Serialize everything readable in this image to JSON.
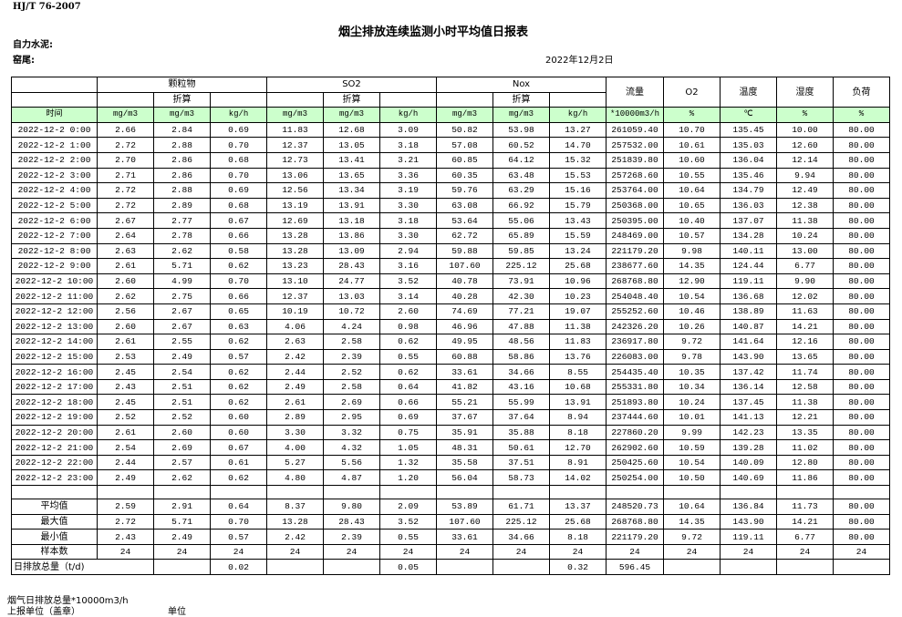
{
  "header": {
    "standard": "HJ/T  76-2007",
    "title": "烟尘排放连续监测小时平均值日报表",
    "company": "自力水泥:",
    "kiln": "窑尾:",
    "date": "2022年12月2日"
  },
  "table": {
    "groups": {
      "particulate": "颗粒物",
      "so2": "SO2",
      "nox": "Nox",
      "flow": "流量",
      "o2": "O2",
      "temp": "温度",
      "humidity": "湿度",
      "load": "负荷"
    },
    "converted": "折算",
    "units": [
      "时间",
      "mg/m3",
      "mg/m3",
      "kg/h",
      "mg/m3",
      "mg/m3",
      "kg/h",
      "mg/m3",
      "mg/m3",
      "kg/h",
      "*10000m3/h",
      "%",
      "℃",
      "%",
      "%"
    ],
    "rows": [
      [
        "2022-12-2 0:00",
        "2.66",
        "2.84",
        "0.69",
        "11.83",
        "12.68",
        "3.09",
        "50.82",
        "53.98",
        "13.27",
        "261059.40",
        "10.70",
        "135.45",
        "10.00",
        "80.00"
      ],
      [
        "2022-12-2 1:00",
        "2.72",
        "2.88",
        "0.70",
        "12.37",
        "13.05",
        "3.18",
        "57.08",
        "60.52",
        "14.70",
        "257532.00",
        "10.61",
        "135.03",
        "12.60",
        "80.00"
      ],
      [
        "2022-12-2 2:00",
        "2.70",
        "2.86",
        "0.68",
        "12.73",
        "13.41",
        "3.21",
        "60.85",
        "64.12",
        "15.32",
        "251839.80",
        "10.60",
        "136.04",
        "12.14",
        "80.00"
      ],
      [
        "2022-12-2 3:00",
        "2.71",
        "2.86",
        "0.70",
        "13.06",
        "13.65",
        "3.36",
        "60.35",
        "63.48",
        "15.53",
        "257268.60",
        "10.55",
        "135.46",
        "9.94",
        "80.00"
      ],
      [
        "2022-12-2 4:00",
        "2.72",
        "2.88",
        "0.69",
        "12.56",
        "13.34",
        "3.19",
        "59.76",
        "63.29",
        "15.16",
        "253764.00",
        "10.64",
        "134.79",
        "12.49",
        "80.00"
      ],
      [
        "2022-12-2 5:00",
        "2.72",
        "2.89",
        "0.68",
        "13.19",
        "13.91",
        "3.30",
        "63.08",
        "66.92",
        "15.79",
        "250368.00",
        "10.65",
        "136.03",
        "12.38",
        "80.00"
      ],
      [
        "2022-12-2 6:00",
        "2.67",
        "2.77",
        "0.67",
        "12.69",
        "13.18",
        "3.18",
        "53.64",
        "55.06",
        "13.43",
        "250395.00",
        "10.40",
        "137.07",
        "11.38",
        "80.00"
      ],
      [
        "2022-12-2 7:00",
        "2.64",
        "2.78",
        "0.66",
        "13.28",
        "13.86",
        "3.30",
        "62.72",
        "65.89",
        "15.59",
        "248469.00",
        "10.57",
        "134.28",
        "10.24",
        "80.00"
      ],
      [
        "2022-12-2 8:00",
        "2.63",
        "2.62",
        "0.58",
        "13.28",
        "13.09",
        "2.94",
        "59.88",
        "59.85",
        "13.24",
        "221179.20",
        "9.98",
        "140.11",
        "13.00",
        "80.00"
      ],
      [
        "2022-12-2 9:00",
        "2.61",
        "5.71",
        "0.62",
        "13.23",
        "28.43",
        "3.16",
        "107.60",
        "225.12",
        "25.68",
        "238677.60",
        "14.35",
        "124.44",
        "6.77",
        "80.00"
      ],
      [
        "2022-12-2 10:00",
        "2.60",
        "4.99",
        "0.70",
        "13.10",
        "24.77",
        "3.52",
        "40.78",
        "73.91",
        "10.96",
        "268768.80",
        "12.90",
        "119.11",
        "9.90",
        "80.00"
      ],
      [
        "2022-12-2 11:00",
        "2.62",
        "2.75",
        "0.66",
        "12.37",
        "13.03",
        "3.14",
        "40.28",
        "42.30",
        "10.23",
        "254048.40",
        "10.54",
        "136.68",
        "12.02",
        "80.00"
      ],
      [
        "2022-12-2 12:00",
        "2.56",
        "2.67",
        "0.65",
        "10.19",
        "10.72",
        "2.60",
        "74.69",
        "77.21",
        "19.07",
        "255252.60",
        "10.46",
        "138.89",
        "11.63",
        "80.00"
      ],
      [
        "2022-12-2 13:00",
        "2.60",
        "2.67",
        "0.63",
        "4.06",
        "4.24",
        "0.98",
        "46.96",
        "47.88",
        "11.38",
        "242326.20",
        "10.26",
        "140.87",
        "14.21",
        "80.00"
      ],
      [
        "2022-12-2 14:00",
        "2.61",
        "2.55",
        "0.62",
        "2.63",
        "2.58",
        "0.62",
        "49.95",
        "48.56",
        "11.83",
        "236917.80",
        "9.72",
        "141.64",
        "12.16",
        "80.00"
      ],
      [
        "2022-12-2 15:00",
        "2.53",
        "2.49",
        "0.57",
        "2.42",
        "2.39",
        "0.55",
        "60.88",
        "58.86",
        "13.76",
        "226083.00",
        "9.78",
        "143.90",
        "13.65",
        "80.00"
      ],
      [
        "2022-12-2 16:00",
        "2.45",
        "2.54",
        "0.62",
        "2.44",
        "2.52",
        "0.62",
        "33.61",
        "34.66",
        "8.55",
        "254435.40",
        "10.35",
        "137.42",
        "11.74",
        "80.00"
      ],
      [
        "2022-12-2 17:00",
        "2.43",
        "2.51",
        "0.62",
        "2.49",
        "2.58",
        "0.64",
        "41.82",
        "43.16",
        "10.68",
        "255331.80",
        "10.34",
        "136.14",
        "12.58",
        "80.00"
      ],
      [
        "2022-12-2 18:00",
        "2.45",
        "2.51",
        "0.62",
        "2.61",
        "2.69",
        "0.66",
        "55.21",
        "55.99",
        "13.91",
        "251893.80",
        "10.24",
        "137.45",
        "11.38",
        "80.00"
      ],
      [
        "2022-12-2 19:00",
        "2.52",
        "2.52",
        "0.60",
        "2.89",
        "2.95",
        "0.69",
        "37.67",
        "37.64",
        "8.94",
        "237444.60",
        "10.01",
        "141.13",
        "12.21",
        "80.00"
      ],
      [
        "2022-12-2 20:00",
        "2.61",
        "2.60",
        "0.60",
        "3.30",
        "3.32",
        "0.75",
        "35.91",
        "35.88",
        "8.18",
        "227860.20",
        "9.99",
        "142.23",
        "13.35",
        "80.00"
      ],
      [
        "2022-12-2 21:00",
        "2.54",
        "2.69",
        "0.67",
        "4.00",
        "4.32",
        "1.05",
        "48.31",
        "50.61",
        "12.70",
        "262902.60",
        "10.59",
        "139.28",
        "11.02",
        "80.00"
      ],
      [
        "2022-12-2 22:00",
        "2.44",
        "2.57",
        "0.61",
        "5.27",
        "5.56",
        "1.32",
        "35.58",
        "37.51",
        "8.91",
        "250425.60",
        "10.54",
        "140.09",
        "12.80",
        "80.00"
      ],
      [
        "2022-12-2 23:00",
        "2.49",
        "2.62",
        "0.62",
        "4.80",
        "4.87",
        "1.20",
        "56.04",
        "58.73",
        "14.02",
        "250254.00",
        "10.50",
        "140.69",
        "11.86",
        "80.00"
      ]
    ],
    "summary": [
      [
        "平均值",
        "2.59",
        "2.91",
        "0.64",
        "8.37",
        "9.80",
        "2.09",
        "53.89",
        "61.71",
        "13.37",
        "248520.73",
        "10.64",
        "136.84",
        "11.73",
        "80.00"
      ],
      [
        "最大值",
        "2.72",
        "5.71",
        "0.70",
        "13.28",
        "28.43",
        "3.52",
        "107.60",
        "225.12",
        "25.68",
        "268768.80",
        "14.35",
        "143.90",
        "14.21",
        "80.00"
      ],
      [
        "最小值",
        "2.43",
        "2.49",
        "0.57",
        "2.42",
        "2.39",
        "0.55",
        "33.61",
        "34.66",
        "8.18",
        "221179.20",
        "9.72",
        "119.11",
        "6.77",
        "80.00"
      ],
      [
        "样本数",
        "24",
        "24",
        "24",
        "24",
        "24",
        "24",
        "24",
        "24",
        "24",
        "24",
        "24",
        "24",
        "24",
        "24"
      ]
    ],
    "daily_total": {
      "label": "日排放总量（t/d)",
      "particulate_kgh": "0.02",
      "so2_kgh": "0.05",
      "nox_kgh": "0.32",
      "flow": "596.45"
    }
  },
  "footer": {
    "flue_gas_total": "烟气日排放总量*10000m3/h",
    "reporting_unit": "上报单位（盖章）",
    "unit": "单位"
  }
}
